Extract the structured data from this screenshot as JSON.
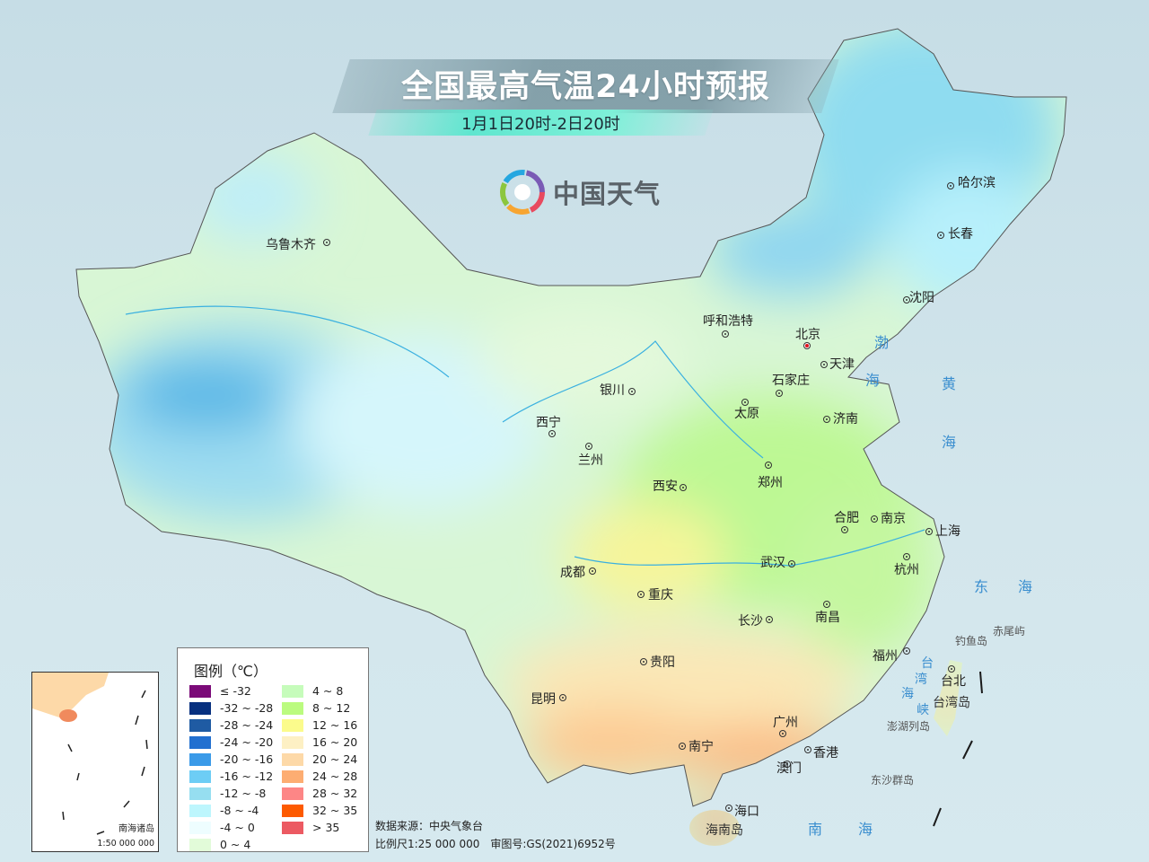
{
  "header": {
    "title": "全国最高气温24小时预报",
    "subtitle": "1月1日20时-2日20时"
  },
  "logo": {
    "text": "中国天气",
    "icon": "spiral-logo-icon"
  },
  "cities": [
    {
      "name": "乌鲁木齐"
    },
    {
      "name": "哈尔滨"
    },
    {
      "name": "长春"
    },
    {
      "name": "沈阳"
    },
    {
      "name": "呼和浩特"
    },
    {
      "name": "北京",
      "capital": true
    },
    {
      "name": "天津"
    },
    {
      "name": "石家庄"
    },
    {
      "name": "太原"
    },
    {
      "name": "济南"
    },
    {
      "name": "银川"
    },
    {
      "name": "西宁"
    },
    {
      "name": "兰州"
    },
    {
      "name": "西安"
    },
    {
      "name": "郑州"
    },
    {
      "name": "合肥"
    },
    {
      "name": "南京"
    },
    {
      "name": "上海"
    },
    {
      "name": "杭州"
    },
    {
      "name": "武汉"
    },
    {
      "name": "成都"
    },
    {
      "name": "重庆"
    },
    {
      "name": "长沙"
    },
    {
      "name": "南昌"
    },
    {
      "name": "贵阳"
    },
    {
      "name": "福州"
    },
    {
      "name": "台北"
    },
    {
      "name": "昆明"
    },
    {
      "name": "广州"
    },
    {
      "name": "香港"
    },
    {
      "name": "澳门"
    },
    {
      "name": "南宁"
    },
    {
      "name": "海口"
    }
  ],
  "seas": [
    "渤",
    "海",
    "黄",
    "海",
    "东",
    "海",
    "南",
    "海",
    "台",
    "湾",
    "海",
    "峡"
  ],
  "islands": [
    "钓鱼岛",
    "赤尾屿",
    "台湾岛",
    "澎湖列岛",
    "东沙群岛",
    "海南岛"
  ],
  "legend": {
    "title": "图例（℃）",
    "items": [
      {
        "label": "≤ -32",
        "color": "#7b0a78"
      },
      {
        "label": "-32 ~ -28",
        "color": "#07307f"
      },
      {
        "label": "-28 ~ -24",
        "color": "#1f5ba3"
      },
      {
        "label": "-24 ~ -20",
        "color": "#2270d0"
      },
      {
        "label": "-20 ~ -16",
        "color": "#3a9ae8"
      },
      {
        "label": "-16 ~ -12",
        "color": "#6dcdf5"
      },
      {
        "label": "-12 ~ -8",
        "color": "#96def0"
      },
      {
        "label": "-8 ~ -4",
        "color": "#bdf6fd"
      },
      {
        "label": "-4 ~ 0",
        "color": "#eefdff"
      },
      {
        "label": "0 ~ 4",
        "color": "#e2fbd9"
      },
      {
        "label": "4 ~ 8",
        "color": "#c6fcbb"
      },
      {
        "label": "8 ~ 12",
        "color": "#bbfb7f"
      },
      {
        "label": "12 ~ 16",
        "color": "#fbfb8c"
      },
      {
        "label": "16 ~ 20",
        "color": "#fdf0c4"
      },
      {
        "label": "20 ~ 24",
        "color": "#fdd9a8"
      },
      {
        "label": "24 ~ 28",
        "color": "#fdad72"
      },
      {
        "label": "28 ~ 32",
        "color": "#fd8686"
      },
      {
        "label": "32 ~ 35",
        "color": "#fd5a00"
      },
      {
        "label": "> 35",
        "color": "#ec5a62"
      }
    ]
  },
  "footer": {
    "source": "数据来源：中央气象台",
    "scale": "比例尺1:25 000 000　审图号:GS(2021)6952号"
  },
  "inset": {
    "name": "南海诸岛",
    "scale": "1:50 000 000"
  }
}
